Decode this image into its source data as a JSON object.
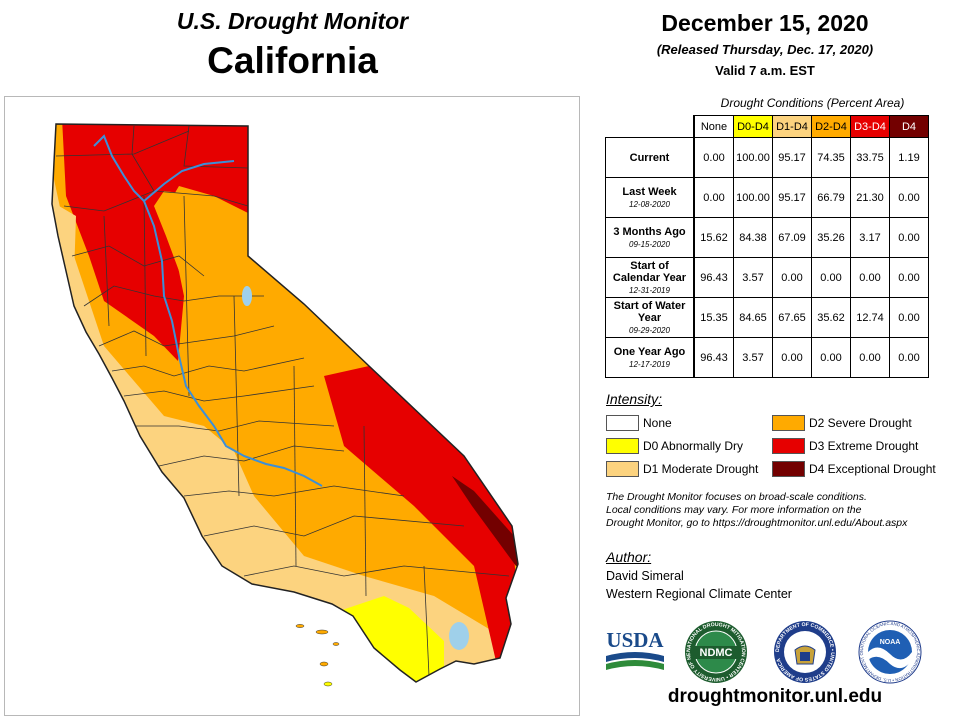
{
  "header": {
    "subtitle": "U.S. Drought Monitor",
    "state": "California",
    "date": "December 15, 2020",
    "released": "(Released Thursday, Dec. 17, 2020)",
    "valid": "Valid 7 a.m. EST"
  },
  "table": {
    "title": "Drought Conditions (Percent Area)",
    "columns": [
      {
        "label": "None",
        "color": "#ffffff",
        "text_color": "#000000"
      },
      {
        "label": "D0-D4",
        "color": "#ffff00",
        "text_color": "#000000"
      },
      {
        "label": "D1-D4",
        "color": "#fcd37f",
        "text_color": "#000000"
      },
      {
        "label": "D2-D4",
        "color": "#ffaa00",
        "text_color": "#000000"
      },
      {
        "label": "D3-D4",
        "color": "#e60000",
        "text_color": "#ffffff"
      },
      {
        "label": "D4",
        "color": "#730000",
        "text_color": "#ffffff"
      }
    ],
    "rows": [
      {
        "label": "Current",
        "date": "",
        "values": [
          "0.00",
          "100.00",
          "95.17",
          "74.35",
          "33.75",
          "1.19"
        ]
      },
      {
        "label": "Last Week",
        "date": "12-08-2020",
        "values": [
          "0.00",
          "100.00",
          "95.17",
          "66.79",
          "21.30",
          "0.00"
        ]
      },
      {
        "label": "3 Months Ago",
        "date": "09-15-2020",
        "values": [
          "15.62",
          "84.38",
          "67.09",
          "35.26",
          "3.17",
          "0.00"
        ]
      },
      {
        "label": "Start of Calendar Year",
        "date": "12-31-2019",
        "values": [
          "96.43",
          "3.57",
          "0.00",
          "0.00",
          "0.00",
          "0.00"
        ]
      },
      {
        "label": "Start of Water Year",
        "date": "09-29-2020",
        "values": [
          "15.35",
          "84.65",
          "67.65",
          "35.62",
          "12.74",
          "0.00"
        ]
      },
      {
        "label": "One Year Ago",
        "date": "12-17-2019",
        "values": [
          "96.43",
          "3.57",
          "0.00",
          "0.00",
          "0.00",
          "0.00"
        ]
      }
    ]
  },
  "intensity": {
    "title": "Intensity:",
    "items": [
      {
        "label": "None",
        "color": "#ffffff"
      },
      {
        "label": "D0 Abnormally Dry",
        "color": "#ffff00"
      },
      {
        "label": "D1 Moderate Drought",
        "color": "#fcd37f"
      },
      {
        "label": "D2 Severe Drought",
        "color": "#ffaa00"
      },
      {
        "label": "D3 Extreme Drought",
        "color": "#e60000"
      },
      {
        "label": "D4 Exceptional Drought",
        "color": "#730000"
      }
    ]
  },
  "note": {
    "line1": "The Drought Monitor focuses on broad-scale conditions.",
    "line2": "Local conditions may vary. For more information on the",
    "line3": "Drought Monitor, go to https://droughtmonitor.unl.edu/About.aspx"
  },
  "author": {
    "title": "Author:",
    "name": "David Simeral",
    "org": "Western Regional Climate Center"
  },
  "logos": {
    "usda": "USDA",
    "ndmc": "NDMC",
    "ndmc_ring": "NATIONAL DROUGHT MITIGATION CENTER • UNIVERSITY OF NEBRASKA",
    "commerce_ring": "DEPARTMENT OF COMMERCE • UNITED STATES OF AMERICA",
    "noaa": "NOAA",
    "noaa_ring": "NATIONAL OCEANIC AND ATMOSPHERIC ADMINISTRATION • U.S. DEPARTMENT OF COMMERCE"
  },
  "footer": {
    "site": "droughtmonitor.unl.edu"
  },
  "map_colors": {
    "d0": "#ffff00",
    "d1": "#fcd37f",
    "d2": "#ffaa00",
    "d3": "#e60000",
    "d4": "#730000",
    "water": "#9fd0ea",
    "river": "#3c8fd8",
    "county": "#333333"
  }
}
